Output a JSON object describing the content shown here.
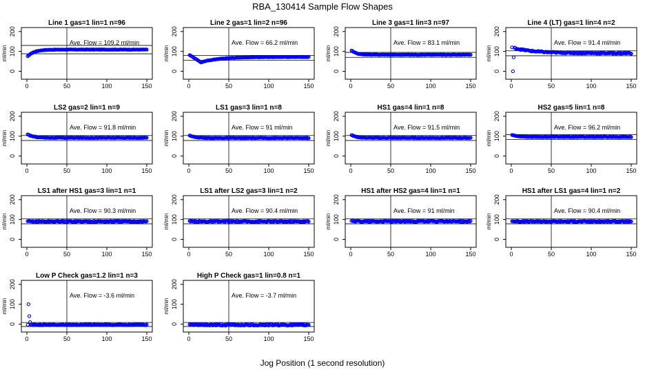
{
  "title": "RBA_130414  Sample Flow Shapes",
  "xlabel": "Jog Position (1 second resolution)",
  "chart_data": [
    {
      "type": "scatter",
      "title": "Line 1 gas=1 lin=1 n=96",
      "ylabel": "ml/min",
      "annotation": "Ave. Flow = 109.2  ml/min",
      "xlim": [
        0,
        150
      ],
      "ylim": [
        -40,
        220
      ],
      "xticks": [
        0,
        50,
        100,
        150
      ],
      "yticks": [
        0,
        100,
        200
      ],
      "vline": 50,
      "hlines": [
        88,
        130
      ],
      "shape": {
        "start": 75,
        "level": 109.2,
        "settle": 8,
        "noise": 1
      }
    },
    {
      "type": "scatter",
      "title": "Line 2 gas=1 lin=2 n=96",
      "ylabel": "ml/min",
      "annotation": "Ave. Flow = 66.2  ml/min",
      "xlim": [
        0,
        150
      ],
      "ylim": [
        -40,
        220
      ],
      "xticks": [
        0,
        50,
        100,
        150
      ],
      "yticks": [
        0,
        100,
        200
      ],
      "vline": 50,
      "hlines": [
        55,
        80
      ],
      "shape": {
        "start": 85,
        "dip": 45,
        "dipAt": 15,
        "level": 72,
        "noise": 1
      }
    },
    {
      "type": "scatter",
      "title": "Line 3 gas=1 lin=3 n=97",
      "ylabel": "ml/min",
      "annotation": "Ave. Flow = 83.1  ml/min",
      "xlim": [
        0,
        150
      ],
      "ylim": [
        -40,
        220
      ],
      "xticks": [
        0,
        50,
        100,
        150
      ],
      "yticks": [
        0,
        100,
        200
      ],
      "vline": 50,
      "hlines": [
        70,
        95
      ],
      "shape": {
        "start": 105,
        "level": 83.1,
        "settle": 6,
        "noise": 1
      }
    },
    {
      "type": "scatter",
      "title": "Line 4 (LT) gas=1 lin=4 n=2",
      "ylabel": "ml/min",
      "annotation": "Ave. Flow = 91.4  ml/min",
      "xlim": [
        0,
        150
      ],
      "ylim": [
        -40,
        220
      ],
      "xticks": [
        0,
        50,
        100,
        150
      ],
      "yticks": [
        0,
        100,
        200
      ],
      "vline": 50,
      "hlines": [
        78,
        103
      ],
      "shape": {
        "start": 120,
        "level": 91.4,
        "settle": 25,
        "noise": 3,
        "outliers": [
          [
            2,
            0
          ],
          [
            3,
            70
          ]
        ]
      }
    },
    {
      "type": "scatter",
      "title": "LS2 gas=2 lin=1 n=9",
      "ylabel": "ml/min",
      "annotation": "Ave. Flow = 91.8  ml/min",
      "xlim": [
        0,
        150
      ],
      "ylim": [
        -40,
        220
      ],
      "xticks": [
        0,
        50,
        100,
        150
      ],
      "yticks": [
        0,
        100,
        200
      ],
      "vline": 50,
      "hlines": [
        78,
        103
      ],
      "shape": {
        "start": 108,
        "level": 91.8,
        "settle": 8,
        "noise": 1.5
      }
    },
    {
      "type": "scatter",
      "title": "LS1 gas=3 lin=1 n=8",
      "ylabel": "ml/min",
      "annotation": "Ave. Flow = 91  ml/min",
      "xlim": [
        0,
        150
      ],
      "ylim": [
        -40,
        220
      ],
      "xticks": [
        0,
        50,
        100,
        150
      ],
      "yticks": [
        0,
        100,
        200
      ],
      "vline": 50,
      "hlines": [
        78,
        103
      ],
      "shape": {
        "start": 105,
        "level": 91,
        "settle": 6,
        "noise": 1.5
      }
    },
    {
      "type": "scatter",
      "title": "HS1 gas=4 lin=1 n=8",
      "ylabel": "ml/min",
      "annotation": "Ave. Flow = 91.5  ml/min",
      "xlim": [
        0,
        150
      ],
      "ylim": [
        -40,
        220
      ],
      "xticks": [
        0,
        50,
        100,
        150
      ],
      "yticks": [
        0,
        100,
        200
      ],
      "vline": 50,
      "hlines": [
        78,
        103
      ],
      "shape": {
        "start": 106,
        "level": 91.5,
        "settle": 6,
        "noise": 1.5
      }
    },
    {
      "type": "scatter",
      "title": "HS2 gas=5 lin=1 n=8",
      "ylabel": "ml/min",
      "annotation": "Ave. Flow = 96.2  ml/min",
      "xlim": [
        0,
        150
      ],
      "ylim": [
        -40,
        220
      ],
      "xticks": [
        0,
        50,
        100,
        150
      ],
      "yticks": [
        0,
        100,
        200
      ],
      "vline": 50,
      "hlines": [
        83,
        108
      ],
      "shape": {
        "start": 106,
        "level": 96.2,
        "settle": 8,
        "noise": 1.5
      }
    },
    {
      "type": "scatter",
      "title": "LS1 after HS1 gas=3 lin=1 n=1",
      "ylabel": "ml/min",
      "annotation": "Ave. Flow = 90.3  ml/min",
      "xlim": [
        0,
        150
      ],
      "ylim": [
        -40,
        220
      ],
      "xticks": [
        0,
        50,
        100,
        150
      ],
      "yticks": [
        0,
        100,
        200
      ],
      "vline": 50,
      "hlines": [
        78,
        103
      ],
      "shape": {
        "start": 90.3,
        "level": 90.3,
        "settle": 1,
        "noise": 3
      }
    },
    {
      "type": "scatter",
      "title": "LS1 after LS2 gas=3 lin=1 n=2",
      "ylabel": "ml/min",
      "annotation": "Ave. Flow = 90.4  ml/min",
      "xlim": [
        0,
        150
      ],
      "ylim": [
        -40,
        220
      ],
      "xticks": [
        0,
        50,
        100,
        150
      ],
      "yticks": [
        0,
        100,
        200
      ],
      "vline": 50,
      "hlines": [
        78,
        103
      ],
      "shape": {
        "start": 90.4,
        "level": 90.4,
        "settle": 1,
        "noise": 3
      }
    },
    {
      "type": "scatter",
      "title": "HS1 after HS2 gas=4 lin=1 n=1",
      "ylabel": "ml/min",
      "annotation": "Ave. Flow = 91  ml/min",
      "xlim": [
        0,
        150
      ],
      "ylim": [
        -40,
        220
      ],
      "xticks": [
        0,
        50,
        100,
        150
      ],
      "yticks": [
        0,
        100,
        200
      ],
      "vline": 50,
      "hlines": [
        78,
        103
      ],
      "shape": {
        "start": 95,
        "level": 91,
        "settle": 4,
        "noise": 3
      }
    },
    {
      "type": "scatter",
      "title": "HS1 after LS1 gas=4 lin=1 n=2",
      "ylabel": "ml/min",
      "annotation": "Ave. Flow = 90.4  ml/min",
      "xlim": [
        0,
        150
      ],
      "ylim": [
        -40,
        220
      ],
      "xticks": [
        0,
        50,
        100,
        150
      ],
      "yticks": [
        0,
        100,
        200
      ],
      "vline": 50,
      "hlines": [
        78,
        103
      ],
      "shape": {
        "start": 92,
        "level": 90.4,
        "settle": 3,
        "noise": 2.5
      }
    },
    {
      "type": "scatter",
      "title": "Low P Check gas=1.2 lin=1 n=3",
      "ylabel": "ml/min",
      "annotation": "Ave. Flow = -3.6  ml/min",
      "xlim": [
        0,
        150
      ],
      "ylim": [
        -40,
        220
      ],
      "xticks": [
        0,
        50,
        100,
        150
      ],
      "yticks": [
        0,
        100,
        200
      ],
      "vline": 50,
      "hlines": [
        -12,
        8
      ],
      "shape": {
        "start": -3.6,
        "level": -3.6,
        "settle": 1,
        "noise": 2,
        "outliers": [
          [
            2,
            100
          ],
          [
            3,
            40
          ],
          [
            4,
            10
          ]
        ]
      }
    },
    {
      "type": "scatter",
      "title": "High P Check gas=1 lin=0.8 n=1",
      "ylabel": "ml/min",
      "annotation": "Ave. Flow = -3.7  ml/min",
      "xlim": [
        0,
        150
      ],
      "ylim": [
        -40,
        220
      ],
      "xticks": [
        0,
        50,
        100,
        150
      ],
      "yticks": [
        0,
        100,
        200
      ],
      "vline": 50,
      "hlines": [
        -12,
        8
      ],
      "shape": {
        "start": -3.7,
        "level": -3.7,
        "settle": 1,
        "noise": 4
      }
    }
  ],
  "colors": {
    "points": "#0000ff",
    "axes": "#000000"
  }
}
